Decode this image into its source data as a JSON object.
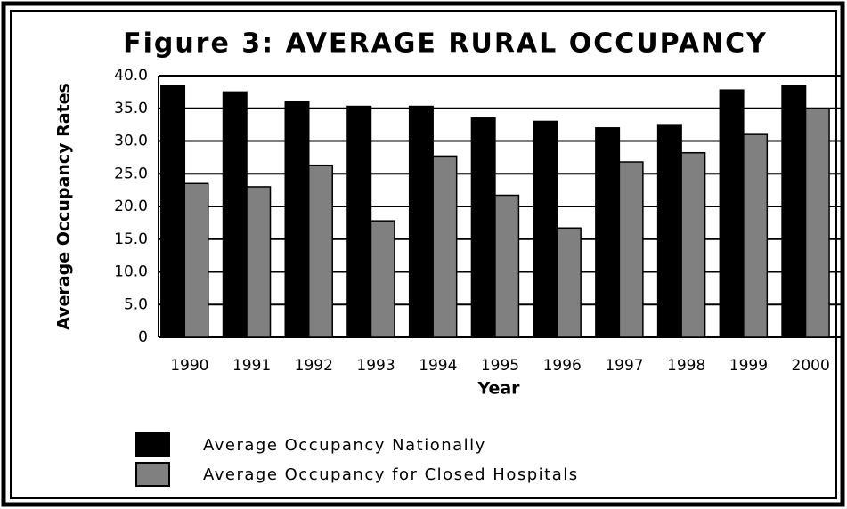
{
  "chart_data": {
    "type": "bar",
    "title": "Figure 3: AVERAGE RURAL OCCUPANCY",
    "x_label": "Year",
    "y_label": "Average Occupancy Rates",
    "categories": [
      "1990",
      "1991",
      "1992",
      "1993",
      "1994",
      "1995",
      "1996",
      "1997",
      "1998",
      "1999",
      "2000"
    ],
    "series": [
      {
        "name": "Average Occupancy Nationally",
        "color": "#000000",
        "values": [
          38.5,
          37.5,
          36.0,
          35.3,
          35.3,
          33.5,
          33.0,
          32.0,
          32.5,
          37.8,
          38.5
        ]
      },
      {
        "name": "Average Occupancy for  Closed Hospitals",
        "color": "#808080",
        "values": [
          23.5,
          23.0,
          26.3,
          17.8,
          27.7,
          21.7,
          16.7,
          26.8,
          28.2,
          31.0,
          35.0
        ]
      }
    ],
    "ylim": [
      0,
      40
    ],
    "yticks": [
      0,
      {
        "value": 5,
        "label": "5.0"
      },
      {
        "value": 10,
        "label": "10.0"
      },
      {
        "value": 15,
        "label": "15.0"
      },
      {
        "value": 20,
        "label": "20.0"
      },
      {
        "value": 25,
        "label": "25.0"
      },
      {
        "value": 30,
        "label": "30.0"
      },
      {
        "value": 35,
        "label": "35.0"
      },
      {
        "value": 40,
        "label": "40.0"
      }
    ],
    "grid": true
  }
}
